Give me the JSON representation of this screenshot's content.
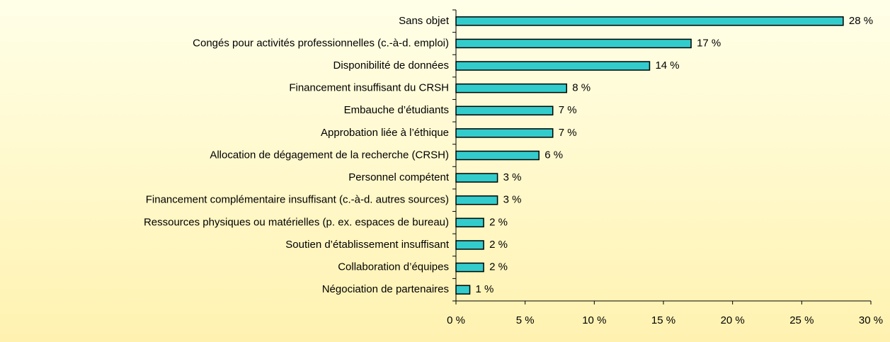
{
  "chart_data": {
    "type": "hbar",
    "categories": [
      "Sans objet",
      "Congés pour activités professionnelles (c.-à-d. emploi)",
      "Disponibilité de données",
      "Financement insuffisant du CRSH",
      "Embauche d’étudiants",
      "Approbation liée à l’éthique",
      "Allocation de dégagement de la recherche (CRSH)",
      "Personnel compétent",
      "Financement complémentaire insuffisant (c.-à-d. autres sources)",
      "Ressources physiques ou matérielles (p. ex. espaces de bureau)",
      "Soutien d’établissement insuffisant",
      "Collaboration d’équipes",
      "Négociation de partenaires"
    ],
    "values": [
      28,
      17,
      14,
      8,
      7,
      7,
      6,
      3,
      3,
      2,
      2,
      2,
      1
    ],
    "value_labels": [
      "28 %",
      "17 %",
      "14 %",
      "8 %",
      "7 %",
      "7 %",
      "6 %",
      "3 %",
      "3 %",
      "2 %",
      "2 %",
      "2 %",
      "1 %"
    ],
    "color": "#33cccc",
    "xlim": [
      0,
      30
    ],
    "xticks": [
      {
        "value": 0,
        "label": "0 %"
      },
      {
        "value": 5,
        "label": "5 %"
      },
      {
        "value": 10,
        "label": "10 %"
      },
      {
        "value": 15,
        "label": "15 %"
      },
      {
        "value": 20,
        "label": "20 %"
      },
      {
        "value": 25,
        "label": "25 %"
      },
      {
        "value": 30,
        "label": "30 %"
      }
    ],
    "grid": false
  }
}
